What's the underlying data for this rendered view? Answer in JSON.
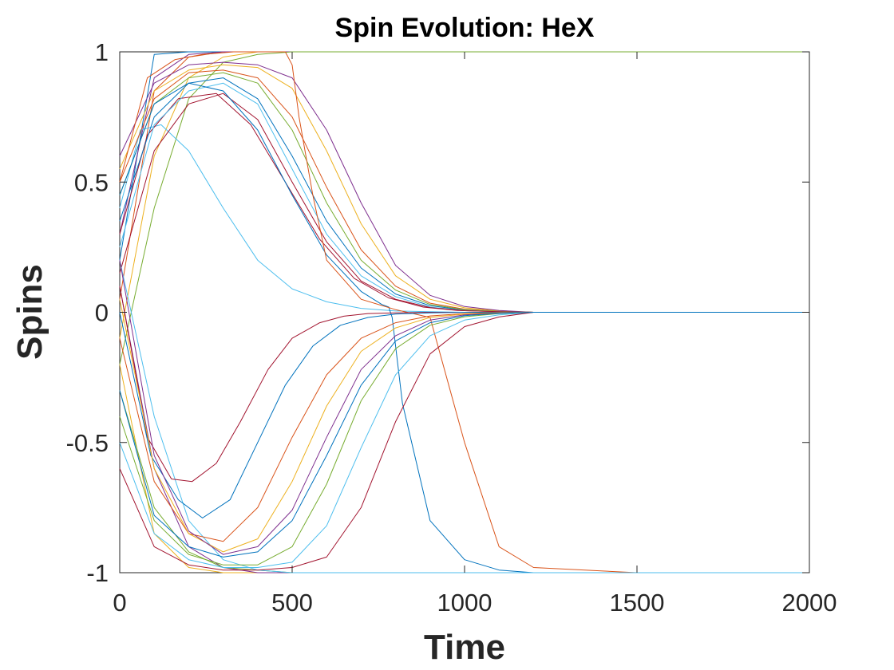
{
  "chart_data": {
    "type": "line",
    "title": "Spin Evolution: HeX",
    "xlabel": "Time",
    "ylabel": "Spins",
    "xlim": [
      0,
      2000
    ],
    "ylim": [
      -1,
      1
    ],
    "xticks": [
      0,
      500,
      1000,
      1500,
      2000
    ],
    "xtick_labels": [
      "0",
      "500",
      "1000",
      "1500",
      "2000"
    ],
    "yticks": [
      -1,
      -0.5,
      0,
      0.5,
      1
    ],
    "ytick_labels": [
      "-1",
      "-0.5",
      "0",
      "0.5",
      "1"
    ],
    "grid": false,
    "legend": "none",
    "colors": [
      "#0072BD",
      "#D95319",
      "#EDB120",
      "#7E2F8E",
      "#77AC30",
      "#4DBEEE",
      "#A2142F"
    ],
    "series": [
      {
        "x": [
          0,
          100,
          200,
          300,
          400,
          500,
          600,
          700,
          800,
          900,
          1000,
          1100,
          1200,
          1500,
          2000
        ],
        "y": [
          0.2,
          0.99,
          1,
          1,
          1,
          1,
          1,
          1,
          1,
          1,
          1,
          1,
          1,
          1,
          1
        ]
      },
      {
        "x": [
          0,
          100,
          200,
          300,
          400,
          500,
          600,
          700,
          800,
          900,
          1000,
          1100,
          1200,
          1500,
          2000
        ],
        "y": [
          0.05,
          0.85,
          0.98,
          1,
          1,
          1,
          1,
          1,
          1,
          1,
          1,
          1,
          1,
          1,
          1
        ]
      },
      {
        "x": [
          0,
          100,
          200,
          300,
          400,
          500,
          600,
          700,
          800,
          900,
          1000,
          1100,
          1200,
          1500,
          2000
        ],
        "y": [
          -0.1,
          0.6,
          0.9,
          0.98,
          1,
          1,
          1,
          1,
          1,
          1,
          1,
          1,
          1,
          1,
          1
        ]
      },
      {
        "x": [
          0,
          100,
          200,
          300,
          400,
          500,
          600,
          700,
          800,
          900,
          1000,
          1100,
          1200,
          1500,
          2000
        ],
        "y": [
          0.3,
          0.9,
          0.99,
          1,
          1,
          1,
          1,
          1,
          1,
          1,
          1,
          1,
          1,
          1,
          1
        ]
      },
      {
        "x": [
          0,
          100,
          200,
          300,
          400,
          500,
          600,
          700,
          800,
          900,
          1000,
          1100,
          1200,
          1500,
          2000
        ],
        "y": [
          -0.2,
          0.4,
          0.82,
          0.96,
          0.99,
          1,
          1,
          1,
          1,
          1,
          1,
          1,
          1,
          1,
          1
        ]
      },
      {
        "x": [
          0,
          60,
          120,
          200,
          300,
          400,
          500,
          600,
          700,
          800,
          900,
          1000,
          1100,
          1200,
          1500,
          2000
        ],
        "y": [
          0.4,
          0.7,
          0.72,
          0.62,
          0.4,
          0.2,
          0.09,
          0.04,
          0.015,
          0.005,
          0.002,
          0,
          0,
          0,
          0,
          0
        ]
      },
      {
        "x": [
          0,
          80,
          170,
          280,
          380,
          480,
          580,
          680,
          780,
          880,
          980,
          1100,
          1200,
          1500,
          2000
        ],
        "y": [
          0.3,
          0.68,
          0.82,
          0.84,
          0.72,
          0.5,
          0.28,
          0.13,
          0.055,
          0.02,
          0.007,
          0.002,
          0,
          0,
          0
        ]
      },
      {
        "x": [
          0,
          100,
          200,
          300,
          400,
          500,
          600,
          700,
          800,
          900,
          1000,
          1100,
          1200,
          1500,
          2000
        ],
        "y": [
          0.35,
          0.75,
          0.88,
          0.9,
          0.82,
          0.6,
          0.35,
          0.17,
          0.07,
          0.025,
          0.009,
          0.003,
          0,
          0,
          0
        ]
      },
      {
        "x": [
          0,
          100,
          200,
          300,
          400,
          500,
          600,
          700,
          800,
          900,
          1000,
          1100,
          1200,
          1500,
          2000
        ],
        "y": [
          0.5,
          0.82,
          0.92,
          0.93,
          0.9,
          0.75,
          0.48,
          0.24,
          0.1,
          0.035,
          0.012,
          0.004,
          0,
          0,
          0
        ]
      },
      {
        "x": [
          0,
          100,
          200,
          300,
          400,
          500,
          600,
          700,
          800,
          900,
          1000,
          1100,
          1200,
          1500,
          2000
        ],
        "y": [
          0.55,
          0.85,
          0.93,
          0.95,
          0.94,
          0.86,
          0.62,
          0.34,
          0.14,
          0.05,
          0.017,
          0.005,
          0,
          0,
          0
        ]
      },
      {
        "x": [
          0,
          100,
          200,
          300,
          400,
          500,
          600,
          700,
          800,
          900,
          1000,
          1100,
          1200,
          1500,
          2000
        ],
        "y": [
          0.6,
          0.88,
          0.95,
          0.96,
          0.95,
          0.9,
          0.7,
          0.42,
          0.18,
          0.065,
          0.022,
          0.007,
          0,
          0,
          0
        ]
      },
      {
        "x": [
          0,
          100,
          200,
          300,
          400,
          500,
          600,
          700,
          800,
          900,
          1000,
          1100,
          1200,
          1500,
          2000
        ],
        "y": [
          0.45,
          0.8,
          0.9,
          0.92,
          0.88,
          0.7,
          0.42,
          0.2,
          0.085,
          0.03,
          0.01,
          0.003,
          0,
          0,
          0
        ]
      },
      {
        "x": [
          0,
          100,
          200,
          300,
          400,
          500,
          600,
          700,
          800,
          900,
          1000,
          1100,
          1200,
          1500,
          2000
        ],
        "y": [
          0.25,
          0.72,
          0.85,
          0.88,
          0.8,
          0.55,
          0.3,
          0.14,
          0.06,
          0.02,
          0.007,
          0.002,
          0,
          0,
          0
        ]
      },
      {
        "x": [
          0,
          100,
          200,
          300,
          400,
          500,
          600,
          700,
          800,
          900,
          1000,
          1100,
          1200,
          1500,
          2000
        ],
        "y": [
          0.15,
          0.62,
          0.8,
          0.84,
          0.74,
          0.5,
          0.27,
          0.12,
          0.05,
          0.018,
          0.006,
          0.002,
          0,
          0,
          0
        ]
      },
      {
        "x": [
          0,
          100,
          200,
          300,
          400,
          500,
          600,
          700,
          760,
          780,
          790,
          820,
          900,
          1000,
          1100,
          1200,
          1500,
          2000
        ],
        "y": [
          0.45,
          0.8,
          0.88,
          0.85,
          0.7,
          0.45,
          0.22,
          0.08,
          0.03,
          0.02,
          -0.02,
          -0.35,
          -0.8,
          -0.95,
          -0.99,
          -1,
          -1,
          -1
        ]
      },
      {
        "x": [
          0,
          80,
          160,
          240,
          330,
          420,
          480,
          500,
          520,
          560,
          600,
          700,
          800,
          900,
          1000,
          1100,
          1200,
          1500,
          2000
        ],
        "y": [
          0.5,
          0.9,
          0.97,
          0.99,
          1,
          1,
          1,
          0.95,
          0.75,
          0.45,
          0.2,
          0.05,
          0.01,
          -0.02,
          -0.5,
          -0.9,
          -0.98,
          -1,
          -1
        ]
      },
      {
        "x": [
          0,
          100,
          200,
          300,
          400,
          500,
          600,
          700,
          800,
          900,
          1000,
          1100,
          1200,
          1500,
          2000
        ],
        "y": [
          -0.2,
          -0.85,
          -0.98,
          -1,
          -1,
          -1,
          -1,
          -1,
          -1,
          -1,
          -1,
          -1,
          -1,
          -1,
          -1
        ]
      },
      {
        "x": [
          0,
          100,
          200,
          300,
          400,
          500,
          600,
          700,
          800,
          900,
          1000,
          1100,
          1200,
          1500,
          2000
        ],
        "y": [
          0.1,
          -0.6,
          -0.9,
          -0.98,
          -1,
          -1,
          -1,
          -1,
          -1,
          -1,
          -1,
          -1,
          -1,
          -1,
          -1
        ]
      },
      {
        "x": [
          0,
          100,
          200,
          300,
          400,
          500,
          600,
          700,
          800,
          900,
          1000,
          1100,
          1200,
          1500,
          2000
        ],
        "y": [
          -0.3,
          -0.75,
          -0.92,
          -0.98,
          -0.99,
          -1,
          -1,
          -1,
          -1,
          -1,
          -1,
          -1,
          -1,
          -1,
          -1
        ]
      },
      {
        "x": [
          0,
          100,
          200,
          300,
          400,
          500,
          600,
          700,
          800,
          900,
          1000,
          1100,
          1200,
          1500,
          2000
        ],
        "y": [
          0.2,
          -0.4,
          -0.8,
          -0.95,
          -0.99,
          -1,
          -1,
          -1,
          -1,
          -1,
          -1,
          -1,
          -1,
          -1,
          -1
        ]
      },
      {
        "x": [
          0,
          80,
          150,
          210,
          280,
          350,
          430,
          500,
          580,
          650,
          720,
          800,
          900,
          1000,
          1100,
          1200,
          1500,
          2000
        ],
        "y": [
          0.1,
          -0.48,
          -0.64,
          -0.65,
          -0.58,
          -0.42,
          -0.22,
          -0.1,
          -0.04,
          -0.015,
          -0.005,
          -0.002,
          0,
          0,
          0,
          0,
          0,
          0
        ]
      },
      {
        "x": [
          0,
          90,
          170,
          240,
          320,
          400,
          480,
          560,
          640,
          720,
          800,
          900,
          1000,
          1100,
          1200,
          1500,
          2000
        ],
        "y": [
          0,
          -0.55,
          -0.72,
          -0.79,
          -0.72,
          -0.5,
          -0.28,
          -0.13,
          -0.05,
          -0.02,
          -0.007,
          -0.002,
          0,
          0,
          0,
          0,
          0
        ]
      },
      {
        "x": [
          0,
          100,
          200,
          300,
          400,
          500,
          600,
          700,
          800,
          900,
          1000,
          1100,
          1200,
          1500,
          2000
        ],
        "y": [
          -0.1,
          -0.65,
          -0.85,
          -0.88,
          -0.75,
          -0.48,
          -0.24,
          -0.1,
          -0.04,
          -0.014,
          -0.005,
          -0.001,
          0,
          0,
          0
        ]
      },
      {
        "x": [
          0,
          100,
          200,
          300,
          400,
          500,
          600,
          700,
          800,
          900,
          1000,
          1100,
          1200,
          1500,
          2000
        ],
        "y": [
          0.05,
          -0.6,
          -0.85,
          -0.92,
          -0.87,
          -0.65,
          -0.36,
          -0.15,
          -0.06,
          -0.02,
          -0.007,
          -0.002,
          0,
          0,
          0
        ]
      },
      {
        "x": [
          0,
          100,
          200,
          300,
          400,
          500,
          600,
          700,
          800,
          900,
          1000,
          1100,
          1200,
          1500,
          2000
        ],
        "y": [
          0.2,
          -0.55,
          -0.84,
          -0.93,
          -0.9,
          -0.76,
          -0.48,
          -0.22,
          -0.09,
          -0.03,
          -0.01,
          -0.003,
          0,
          0,
          0
        ]
      },
      {
        "x": [
          0,
          100,
          200,
          300,
          400,
          500,
          600,
          700,
          800,
          900,
          1000,
          1100,
          1200,
          1500,
          2000
        ],
        "y": [
          -0.4,
          -0.8,
          -0.93,
          -0.97,
          -0.97,
          -0.9,
          -0.66,
          -0.34,
          -0.14,
          -0.05,
          -0.017,
          -0.005,
          0,
          0,
          0
        ]
      },
      {
        "x": [
          0,
          100,
          200,
          300,
          400,
          500,
          600,
          700,
          800,
          900,
          1000,
          1100,
          1200,
          1500,
          2000
        ],
        "y": [
          -0.5,
          -0.85,
          -0.95,
          -0.98,
          -0.98,
          -0.96,
          -0.82,
          -0.52,
          -0.24,
          -0.09,
          -0.03,
          -0.01,
          0,
          0,
          0
        ]
      },
      {
        "x": [
          0,
          100,
          200,
          300,
          400,
          500,
          600,
          700,
          800,
          900,
          1000,
          1100,
          1200,
          1500,
          2000
        ],
        "y": [
          -0.6,
          -0.9,
          -0.97,
          -0.99,
          -0.99,
          -0.98,
          -0.94,
          -0.75,
          -0.42,
          -0.16,
          -0.055,
          -0.018,
          0,
          0,
          0
        ]
      },
      {
        "x": [
          0,
          100,
          200,
          300,
          400,
          500,
          600,
          700,
          800,
          900,
          1000,
          1100,
          1200,
          1500,
          2000
        ],
        "y": [
          -0.3,
          -0.78,
          -0.9,
          -0.94,
          -0.92,
          -0.8,
          -0.55,
          -0.28,
          -0.11,
          -0.04,
          -0.013,
          -0.004,
          0,
          0,
          0
        ]
      }
    ]
  }
}
